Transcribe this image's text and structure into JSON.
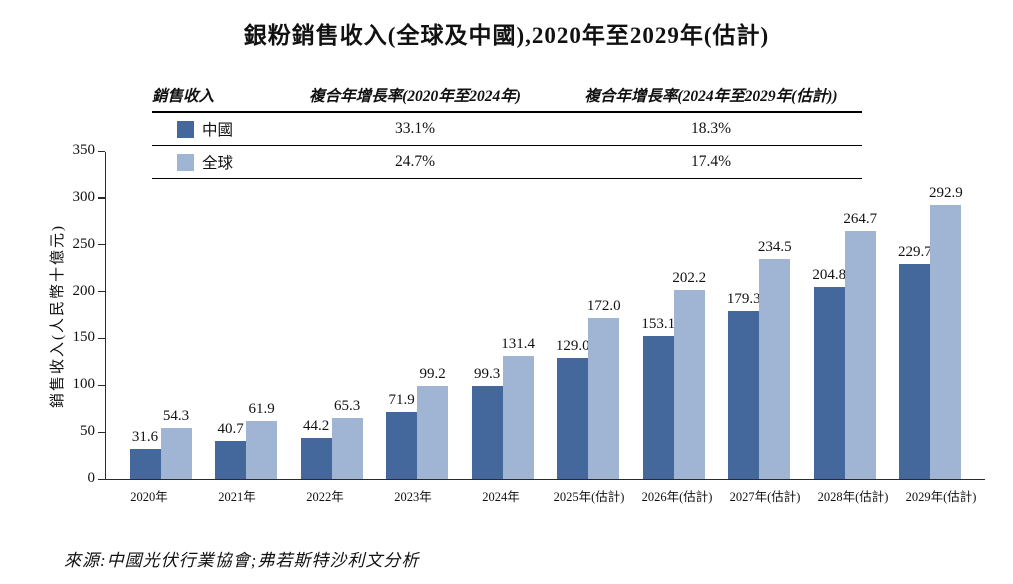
{
  "title": "銀粉銷售收入(全球及中國),2020年至2029年(估計)",
  "table": {
    "headers": [
      "銷售收入",
      "複合年增長率(2020年至2024年)",
      "複合年增長率(2024年至2029年(估計))"
    ],
    "rows": [
      {
        "label": "中國",
        "cagr_2020_2024": "33.1%",
        "cagr_2024_2029": "18.3%",
        "color": "#44689C"
      },
      {
        "label": "全球",
        "cagr_2020_2024": "24.7%",
        "cagr_2024_2029": "17.4%",
        "color": "#A0B4D4"
      }
    ]
  },
  "chart_data": {
    "type": "bar",
    "title": "銀粉銷售收入(全球及中國),2020年至2029年(估計)",
    "categories": [
      "2020年",
      "2021年",
      "2022年",
      "2023年",
      "2024年",
      "2025年(估計)",
      "2026年(估計)",
      "2027年(估計)",
      "2028年(估計)",
      "2029年(估計)"
    ],
    "series": [
      {
        "name": "中國",
        "color": "#44689C",
        "values": [
          31.6,
          40.7,
          44.2,
          71.9,
          99.3,
          129.0,
          153.1,
          179.3,
          204.8,
          229.7
        ]
      },
      {
        "name": "全球",
        "color": "#A0B4D4",
        "values": [
          54.3,
          61.9,
          65.3,
          99.2,
          131.4,
          172.0,
          202.2,
          234.5,
          264.7,
          292.9
        ]
      }
    ],
    "ylabel": "銷售收入(人民幣十億元)",
    "ylim": [
      0,
      350
    ],
    "yticks": [
      0,
      50,
      100,
      150,
      200,
      250,
      300,
      350
    ],
    "grid": false,
    "legend_position": "table-top",
    "value_labels": true
  },
  "source": "來源:中國光伏行業協會;弗若斯特沙利文分析"
}
